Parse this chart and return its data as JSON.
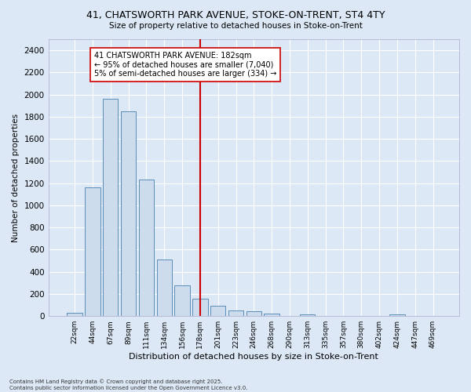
{
  "title1": "41, CHATSWORTH PARK AVENUE, STOKE-ON-TRENT, ST4 4TY",
  "title2": "Size of property relative to detached houses in Stoke-on-Trent",
  "xlabel": "Distribution of detached houses by size in Stoke-on-Trent",
  "ylabel": "Number of detached properties",
  "categories": [
    "22sqm",
    "44sqm",
    "67sqm",
    "89sqm",
    "111sqm",
    "134sqm",
    "156sqm",
    "178sqm",
    "201sqm",
    "223sqm",
    "246sqm",
    "268sqm",
    "290sqm",
    "313sqm",
    "335sqm",
    "357sqm",
    "380sqm",
    "402sqm",
    "424sqm",
    "447sqm",
    "469sqm"
  ],
  "values": [
    30,
    1160,
    1960,
    1850,
    1230,
    510,
    275,
    155,
    95,
    50,
    45,
    25,
    0,
    15,
    0,
    0,
    0,
    0,
    15,
    0,
    0
  ],
  "bar_color": "#ccdcec",
  "bar_edge_color": "#5b8db8",
  "vline_color": "#cc0000",
  "annotation_text": "41 CHATSWORTH PARK AVENUE: 182sqm\n← 95% of detached houses are smaller (7,040)\n5% of semi-detached houses are larger (334) →",
  "annotation_box_color": "#ffffff",
  "annotation_box_edge": "#cc0000",
  "ylim": [
    0,
    2500
  ],
  "yticks": [
    0,
    200,
    400,
    600,
    800,
    1000,
    1200,
    1400,
    1600,
    1800,
    2000,
    2200,
    2400
  ],
  "background_color": "#dce8f5",
  "grid_color": "#ffffff",
  "footer_line1": "Contains HM Land Registry data © Crown copyright and database right 2025.",
  "footer_line2": "Contains public sector information licensed under the Open Government Licence v3.0."
}
